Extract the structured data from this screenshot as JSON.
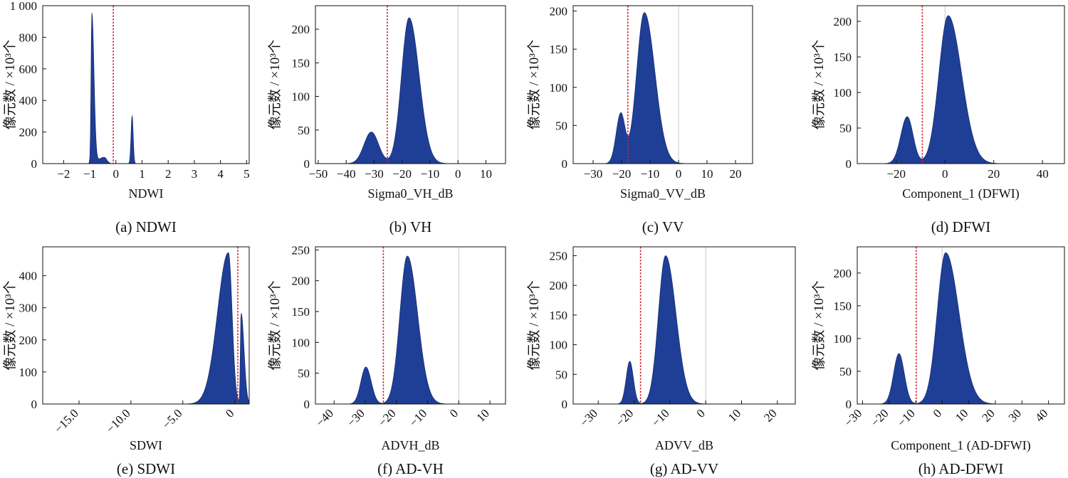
{
  "figure": {
    "fill_color": "#1f3f96",
    "edge_color": "#152c72",
    "threshold_color": "#d0202a",
    "zero_line_color": "#d9d9d9"
  },
  "chart_data": [
    {
      "id": "a",
      "type": "area",
      "caption": "(a) NDWI",
      "xlabel": "NDWI",
      "ylabel": "像元数 / ×10³个",
      "xlim": [
        -2.8,
        5.1
      ],
      "ylim": [
        0,
        1000
      ],
      "xticks": [
        -2,
        -1,
        0,
        1,
        2,
        3,
        4,
        5
      ],
      "xtick_labels": [
        "−2",
        "−1",
        "0",
        "1",
        "2",
        "3",
        "4",
        "5"
      ],
      "yticks": [
        0,
        200,
        400,
        600,
        800,
        1000
      ],
      "ytick_labels": [
        "0",
        "200",
        "400",
        "600",
        "800",
        "1 000"
      ],
      "threshold": -0.1,
      "zero_line": false,
      "peaks": [
        {
          "x": -0.92,
          "y": 950,
          "sl": 0.03,
          "sr": 0.08
        },
        {
          "x": -0.45,
          "y": 40,
          "sl": 0.22,
          "sr": 0.1
        },
        {
          "x": 0.62,
          "y": 305,
          "sl": 0.04,
          "sr": 0.04
        }
      ]
    },
    {
      "id": "b",
      "type": "area",
      "caption": "(b) VH",
      "xlabel": "Sigma0_VH_dB",
      "ylabel": "像元数 / ×10³个",
      "xlim": [
        -51,
        17
      ],
      "ylim": [
        0,
        235
      ],
      "xticks": [
        -50,
        -40,
        -30,
        -20,
        -10,
        0,
        10
      ],
      "xtick_labels": [
        "−50",
        "−40",
        "−30",
        "−20",
        "−10",
        "0",
        "10"
      ],
      "yticks": [
        0,
        50,
        100,
        150,
        200
      ],
      "ytick_labels": [
        "0",
        "50",
        "100",
        "150",
        "200"
      ],
      "threshold": -25.3,
      "zero_line": true,
      "peaks": [
        {
          "x": -31,
          "y": 47,
          "sl": 2.6,
          "sr": 2.6
        },
        {
          "x": -17.5,
          "y": 217,
          "sl": 2.7,
          "sr": 3.6
        }
      ]
    },
    {
      "id": "c",
      "type": "area",
      "caption": "(c) VV",
      "xlabel": "Sigma0_VV_dB",
      "ylabel": "像元数 / ×10³个",
      "xlim": [
        -37,
        26
      ],
      "ylim": [
        0,
        207
      ],
      "xticks": [
        -30,
        -20,
        -10,
        0,
        10,
        20
      ],
      "xtick_labels": [
        "−30",
        "−20",
        "−10",
        "0",
        "10",
        "20"
      ],
      "yticks": [
        0,
        50,
        100,
        150,
        200
      ],
      "ytick_labels": [
        "0",
        "50",
        "100",
        "150",
        "200"
      ],
      "threshold": -17.8,
      "zero_line": true,
      "peaks": [
        {
          "x": -20.3,
          "y": 65,
          "sl": 1.6,
          "sr": 1.5
        },
        {
          "x": -12,
          "y": 198,
          "sl": 2.7,
          "sr": 3.7
        }
      ]
    },
    {
      "id": "d",
      "type": "area",
      "caption": "(d) DFWI",
      "xlabel": "Component_1 (DFWI)",
      "ylabel": "像元数 / ×10³个",
      "xlim": [
        -36,
        49
      ],
      "ylim": [
        0,
        222
      ],
      "xticks": [
        -20,
        0,
        20,
        40
      ],
      "xtick_labels": [
        "−20",
        "0",
        "20",
        "40"
      ],
      "yticks": [
        0,
        50,
        100,
        150,
        200
      ],
      "ytick_labels": [
        "0",
        "50",
        "100",
        "150",
        "200"
      ],
      "threshold": -9.3,
      "zero_line": true,
      "peaks": [
        {
          "x": -15.5,
          "y": 66,
          "sl": 2.6,
          "sr": 2.4
        },
        {
          "x": 1.3,
          "y": 208,
          "sl": 3.8,
          "sr": 5.5
        }
      ]
    },
    {
      "id": "e",
      "type": "area",
      "caption": "(e) SDWI",
      "xlabel": "SDWI",
      "ylabel": "像元数 / ×10³个",
      "xlim": [
        -18.5,
        1.4
      ],
      "ylim": [
        0,
        490
      ],
      "xticks": [
        -15,
        -10,
        -5,
        0
      ],
      "xtick_labels": [
        "−15.0",
        "−10.0",
        "−5.0",
        "0"
      ],
      "yticks": [
        0,
        100,
        200,
        300,
        400
      ],
      "ytick_labels": [
        "0",
        "100",
        "200",
        "300",
        "400"
      ],
      "threshold": 0.3,
      "zero_line": false,
      "peaks": [
        {
          "x": -0.6,
          "y": 472,
          "sl": 1.05,
          "sr": 0.35
        },
        {
          "x": 0.62,
          "y": 283,
          "sl": 0.07,
          "sr": 0.28
        }
      ]
    },
    {
      "id": "f",
      "type": "area",
      "caption": "(f) AD-VH",
      "xlabel": "ADVH_dB",
      "ylabel": "像元数 / ×10³个",
      "xlim": [
        -46,
        15
      ],
      "ylim": [
        0,
        255
      ],
      "xticks": [
        -40,
        -30,
        -20,
        -10,
        0,
        10
      ],
      "xtick_labels": [
        "−40",
        "−30",
        "−20",
        "−10",
        "0",
        "10"
      ],
      "yticks": [
        0,
        50,
        100,
        150,
        200,
        250
      ],
      "ytick_labels": [
        "0",
        "50",
        "100",
        "150",
        "200",
        "250"
      ],
      "threshold": -24.2,
      "zero_line": true,
      "peaks": [
        {
          "x": -29.8,
          "y": 60,
          "sl": 1.6,
          "sr": 1.7
        },
        {
          "x": -16.5,
          "y": 240,
          "sl": 2.4,
          "sr": 3.3
        }
      ]
    },
    {
      "id": "g",
      "type": "area",
      "caption": "(g) AD-VV",
      "xlabel": "ADVV_dB",
      "ylabel": "像元数 / ×10³个",
      "xlim": [
        -37,
        25
      ],
      "ylim": [
        0,
        265
      ],
      "xticks": [
        -30,
        -20,
        -10,
        0,
        10,
        20
      ],
      "xtick_labels": [
        "−30",
        "−20",
        "−10",
        "0",
        "10",
        "20"
      ],
      "yticks": [
        0,
        50,
        100,
        150,
        200,
        250
      ],
      "ytick_labels": [
        "0",
        "50",
        "100",
        "150",
        "200",
        "250"
      ],
      "threshold": -18.2,
      "zero_line": true,
      "peaks": [
        {
          "x": -21.2,
          "y": 72,
          "sl": 1.0,
          "sr": 1.0
        },
        {
          "x": -11.2,
          "y": 250,
          "sl": 2.0,
          "sr": 2.9
        }
      ]
    },
    {
      "id": "h",
      "type": "area",
      "caption": "(h) AD-DFWI",
      "xlabel": "Component_1 (AD-DFWI)",
      "ylabel": "像元数 / ×10³个",
      "xlim": [
        -32,
        46
      ],
      "ylim": [
        0,
        240
      ],
      "xticks": [
        -30,
        -20,
        -10,
        0,
        10,
        20,
        30,
        40
      ],
      "xtick_labels": [
        "−30",
        "−20",
        "−10",
        "0",
        "10",
        "20",
        "30",
        "40"
      ],
      "yticks": [
        0,
        50,
        100,
        150,
        200
      ],
      "ytick_labels": [
        "0",
        "50",
        "100",
        "150",
        "200"
      ],
      "threshold": -9.8,
      "zero_line": true,
      "peaks": [
        {
          "x": -16.3,
          "y": 77,
          "sl": 2.0,
          "sr": 2.0
        },
        {
          "x": 1.3,
          "y": 231,
          "sl": 3.2,
          "sr": 5.0
        }
      ]
    }
  ]
}
